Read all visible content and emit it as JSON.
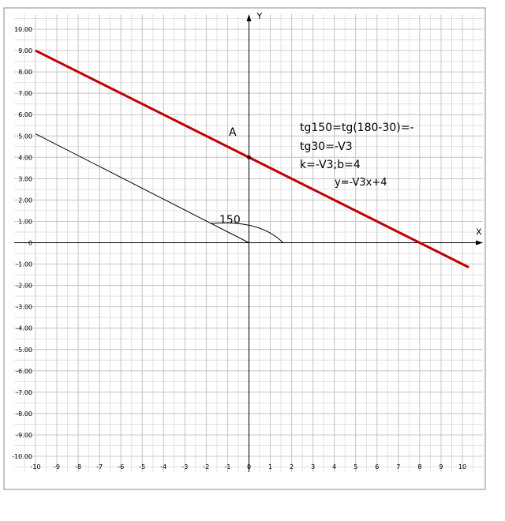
{
  "chart_data": {
    "type": "line",
    "x_label": "X",
    "y_label": "Y",
    "xlim": [
      -10,
      10
    ],
    "ylim": [
      -10,
      10
    ],
    "xticks": [
      -10,
      -9,
      -8,
      -7,
      -6,
      -5,
      -4,
      -3,
      -2,
      -1,
      0,
      1,
      2,
      3,
      4,
      5,
      6,
      7,
      8,
      9,
      10
    ],
    "yticks": [
      {
        "value": 10,
        "label": "10.00"
      },
      {
        "value": 9,
        "label": "9.00"
      },
      {
        "value": 8,
        "label": "8.00"
      },
      {
        "value": 7,
        "label": "7.00"
      },
      {
        "value": 6,
        "label": "6.00"
      },
      {
        "value": 5,
        "label": "5.00"
      },
      {
        "value": 4,
        "label": "4.00"
      },
      {
        "value": 3,
        "label": "3.00"
      },
      {
        "value": 2,
        "label": "2.00"
      },
      {
        "value": 1,
        "label": "1.00"
      },
      0,
      {
        "value": -1,
        "label": "-1.00"
      },
      {
        "value": -2,
        "label": "-2.00"
      },
      {
        "value": -3,
        "label": "-3.00"
      },
      {
        "value": -4,
        "label": "-4.00"
      },
      {
        "value": -5,
        "label": "-5.00"
      },
      {
        "value": -6,
        "label": "-6.00"
      },
      {
        "value": -7,
        "label": "-7.00"
      },
      {
        "value": -8,
        "label": "-8.00"
      },
      {
        "value": -9,
        "label": "-9.00"
      },
      {
        "value": -10,
        "label": "-10.00"
      }
    ],
    "grid": true,
    "series": [
      {
        "color": "#c00000",
        "x": [
          -10,
          10.3
        ],
        "values": [
          9,
          -1.15
        ]
      },
      {
        "color": "#000000",
        "x": [
          -10,
          0
        ],
        "values": [
          5.1,
          0
        ]
      }
    ],
    "annotations": [
      "A",
      "150",
      "tg150=tg(180-30)=-",
      "tg30=-V3",
      "k=-V3;b=4",
      "y=-V3x+4"
    ]
  }
}
